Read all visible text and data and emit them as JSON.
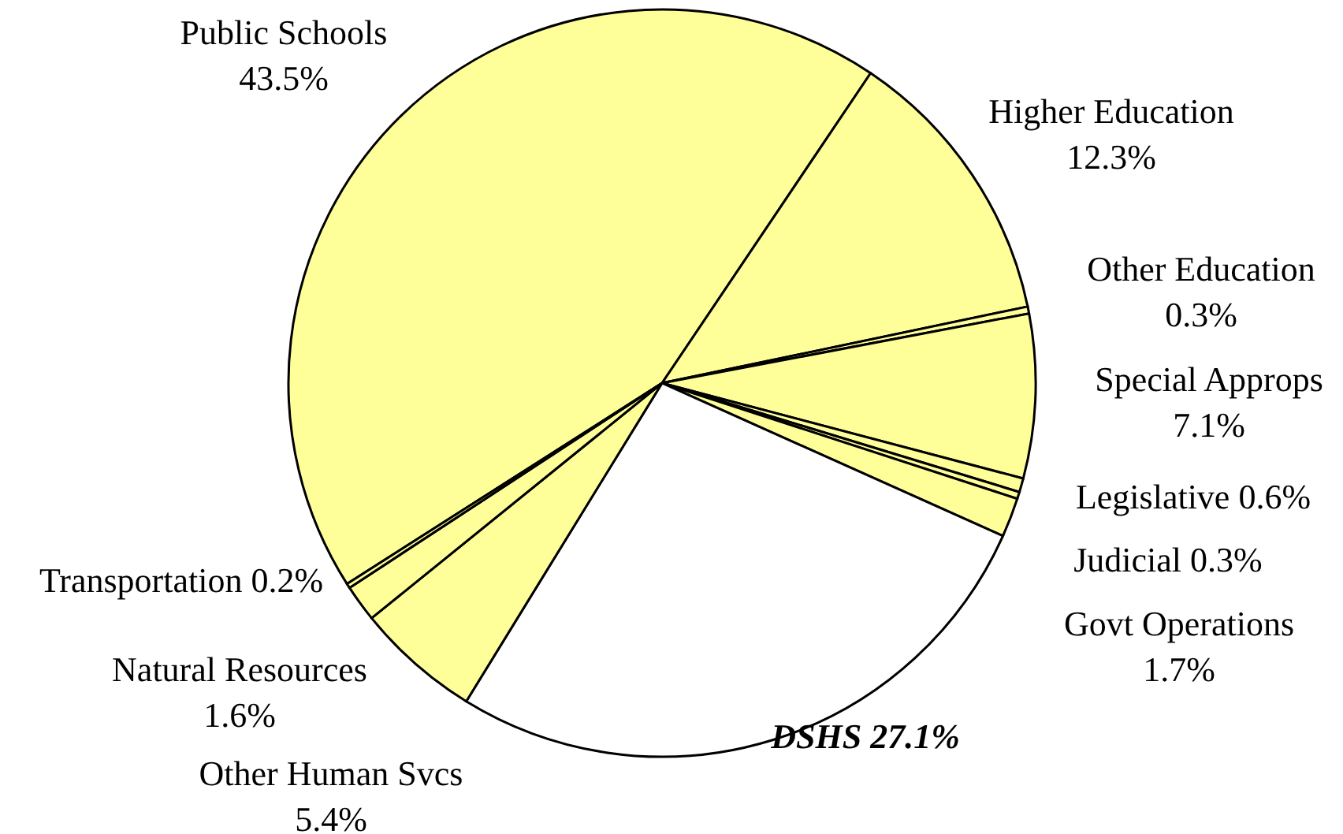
{
  "chart_data": {
    "type": "pie",
    "categories": [
      "Public Schools",
      "Higher Education",
      "Other Education",
      "Special Approps",
      "Legislative",
      "Judicial",
      "Govt Operations",
      "DSHS",
      "Other Human Svcs",
      "Natural Resources",
      "Transportation"
    ],
    "values": [
      43.5,
      12.3,
      0.3,
      7.1,
      0.6,
      0.3,
      1.7,
      27.1,
      5.4,
      1.6,
      0.2
    ],
    "value_labels": [
      "43.5%",
      "12.3%",
      "0.3%",
      "7.1%",
      "0.6%",
      "0.3%",
      "1.7%",
      "27.1%",
      "5.4%",
      "1.6%",
      "0.2%"
    ],
    "colors": [
      "#ffff99",
      "#ffff99",
      "#ffff99",
      "#ffff99",
      "#ffff99",
      "#ffff99",
      "#ffff99",
      "#ffffff",
      "#ffff99",
      "#ffff99",
      "#ffff99"
    ]
  }
}
